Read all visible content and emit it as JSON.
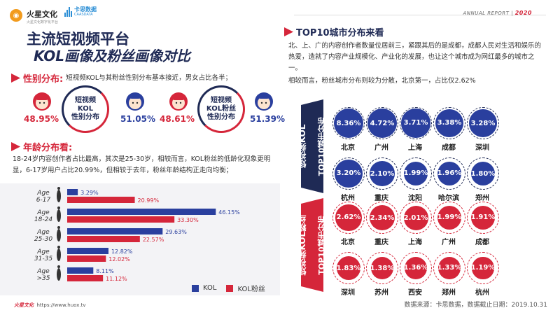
{
  "header": {
    "logo_name": "火星文化",
    "logo_sub": "火星文化数字化平台",
    "logo2_name": "卡思数据",
    "logo2_sub": "CAASDATA",
    "report_label": "ANNUAL REPORT",
    "report_year": "2020"
  },
  "title": {
    "line1": "主流短视频平台",
    "line2": "KOL画像及粉丝画像对比"
  },
  "gender": {
    "heading": "性别分布:",
    "desc": "短视频KOL与其粉丝性别分布基本接近，男女占比各半；",
    "kol": {
      "label": "短视频KOL性别分布",
      "label_l1": "短视频",
      "label_l2": "KOL",
      "label_l3": "性别分布",
      "female_pct": "48.95%",
      "male_pct": "51.05%"
    },
    "fans": {
      "label": "短视频KOL粉丝性别分布",
      "label_l1": "短视频",
      "label_l2": "KOL粉丝",
      "label_l3": "性别分布",
      "female_pct": "48.61%",
      "male_pct": "51.39%"
    }
  },
  "age": {
    "heading": "年龄分布看:",
    "desc": "18-24岁内容创作者占比最高，其次是25-30岁，相较而言，KOL粉丝的低龄化现象更明显，6-17岁用户占比20.99%，但相较于去年，粉丝年龄结构正走向均衡；"
  },
  "chart_data": {
    "type": "bar",
    "orientation": "horizontal",
    "categories": [
      "Age 6-17",
      "Age 18-24",
      "Age 25-30",
      "Age 31-35",
      "Age >35"
    ],
    "category_lines": [
      [
        "Age",
        "6-17"
      ],
      [
        "Age",
        "18-24"
      ],
      [
        "Age",
        "25-30"
      ],
      [
        "Age",
        "31-35"
      ],
      [
        "Age",
        ">35"
      ]
    ],
    "series": [
      {
        "name": "KOL",
        "color": "#2a3f9e",
        "values": [
          3.29,
          46.15,
          29.63,
          12.82,
          8.11
        ],
        "labels": [
          "3.29%",
          "46.15%",
          "29.63%",
          "12.82%",
          "8.11%"
        ]
      },
      {
        "name": "KOL粉丝",
        "color": "#d5263a",
        "values": [
          20.99,
          33.3,
          22.57,
          12.02,
          11.12
        ],
        "labels": [
          "20.99%",
          "33.30%",
          "22.57%",
          "12.02%",
          "11.12%"
        ]
      }
    ],
    "xlim": [
      0,
      50
    ],
    "legend": "bottom-right"
  },
  "cities": {
    "heading": "TOP10城市分布来看",
    "desc1": "北、上、广的内容创作者数量位居前三，紧跟其后的是成都，成都人民对生活和娱乐的热爱，造就了内容产业规模化、产业化的发展，也让这个城市成为网红最多的城市之一。",
    "desc2": "相较而言，粉丝城市分布则较为分散，北京第一，占比仅2.62%",
    "kol_tab": "短视频KOL TOP10城市分布",
    "kol_tab_l1": "短视频KOL",
    "kol_tab_l2": "TOP10城市分布",
    "fans_tab": "短视频KOL粉丝 TOP10城市分布",
    "fans_tab_l1": "短视频KOL粉丝",
    "fans_tab_l2": "TOP10城市分布",
    "kol": [
      {
        "name": "北京",
        "pct": "8.36%",
        "value": 8.36
      },
      {
        "name": "广州",
        "pct": "4.72%",
        "value": 4.72
      },
      {
        "name": "上海",
        "pct": "3.71%",
        "value": 3.71
      },
      {
        "name": "成都",
        "pct": "3.38%",
        "value": 3.38
      },
      {
        "name": "深圳",
        "pct": "3.28%",
        "value": 3.28
      },
      {
        "name": "杭州",
        "pct": "3.20%",
        "value": 3.2
      },
      {
        "name": "重庆",
        "pct": "2.10%",
        "value": 2.1
      },
      {
        "name": "沈阳",
        "pct": "1.99%",
        "value": 1.99
      },
      {
        "name": "哈尔滨",
        "pct": "1.96%",
        "value": 1.96
      },
      {
        "name": "郑州",
        "pct": "1.80%",
        "value": 1.8
      }
    ],
    "fans": [
      {
        "name": "北京",
        "pct": "2.62%",
        "value": 2.62
      },
      {
        "name": "重庆",
        "pct": "2.34%",
        "value": 2.34
      },
      {
        "name": "上海",
        "pct": "2.01%",
        "value": 2.01
      },
      {
        "name": "广州",
        "pct": "1.99%",
        "value": 1.99
      },
      {
        "name": "成都",
        "pct": "1.91%",
        "value": 1.91
      },
      {
        "name": "深圳",
        "pct": "1.83%",
        "value": 1.83
      },
      {
        "name": "苏州",
        "pct": "1.38%",
        "value": 1.38
      },
      {
        "name": "西安",
        "pct": "1.36%",
        "value": 1.36
      },
      {
        "name": "郑州",
        "pct": "1.33%",
        "value": 1.33
      },
      {
        "name": "杭州",
        "pct": "1.19%",
        "value": 1.19
      }
    ]
  },
  "footer": {
    "brand": "火星文化",
    "url": "https://www.huox.tv",
    "source": "数据来源：卡思数据，数据截止日期：2019.10.31"
  },
  "colors": {
    "red": "#d5263a",
    "navy": "#1f2a55",
    "blue": "#2a3f9e"
  }
}
